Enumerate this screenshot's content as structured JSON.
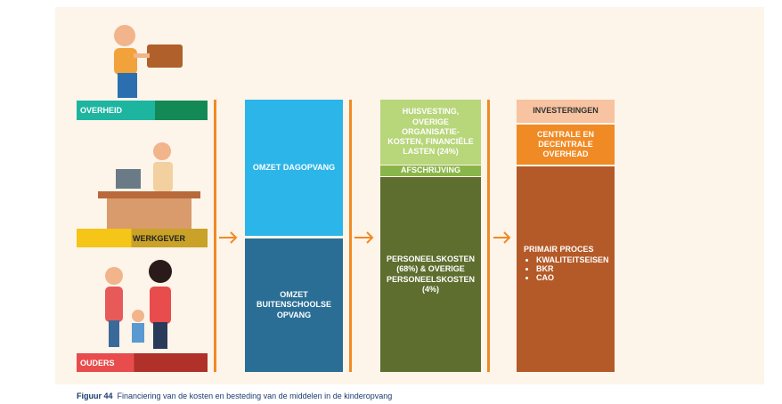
{
  "funders": [
    {
      "label": "OVERHEID"
    },
    {
      "label": "WERKGEVER"
    },
    {
      "label": "OUDERS"
    }
  ],
  "revenue": [
    {
      "label": "OMZET DAGOPVANG"
    },
    {
      "label": "OMZET BUITENSCHOOLSE OPVANG"
    }
  ],
  "costs": [
    {
      "label": "HUISVESTING, OVERIGE ORGANISATIE-KOSTEN, FINANCIËLE LASTEN (24%)"
    },
    {
      "label": "AFSCHRIJVING"
    },
    {
      "label": "PERSONEELSKOSTEN (68%) & OVERIGE PERSONEELSKOSTEN (4%)"
    }
  ],
  "spending": {
    "top": "INVESTERINGEN",
    "middle": "CENTRALE EN DECENTRALE OVERHEAD",
    "main": "PRIMAIR PROCES",
    "items": [
      "KWALITEITSEISEN",
      "BKR",
      "CAO"
    ]
  },
  "caption": {
    "number": "Figuur 44",
    "text": "Financiering van de kosten en besteding van de middelen in de kinderopvang"
  }
}
